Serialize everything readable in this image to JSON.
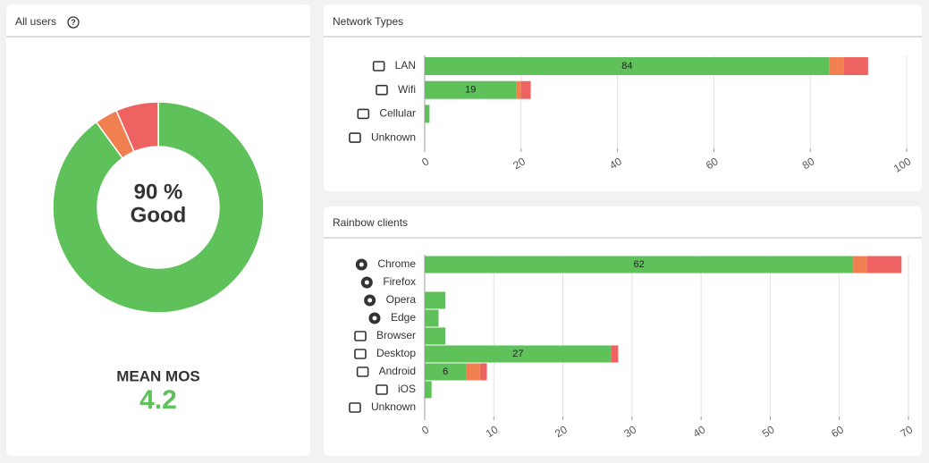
{
  "chart_data": [
    {
      "type": "pie",
      "title": "All users",
      "values": [
        90,
        3.5,
        6.5
      ],
      "colors": [
        "#5ec15a",
        "#f08050",
        "#ef6262"
      ],
      "center_label": "90 %",
      "center_sublabel": "Good",
      "mean_label": "MEAN MOS",
      "mean_value": 4.2
    },
    {
      "type": "bar",
      "title": "Network Types",
      "orientation": "horizontal",
      "stacked": true,
      "categories": [
        "LAN",
        "Wifi",
        "Cellular",
        "Unknown"
      ],
      "series": [
        {
          "color": "#5ec15a",
          "values": [
            84,
            19,
            1,
            0
          ]
        },
        {
          "color": "#f08050",
          "values": [
            3,
            1,
            0,
            0
          ]
        },
        {
          "color": "#ef6262",
          "values": [
            5,
            2,
            0,
            0
          ]
        }
      ],
      "xlim": [
        0,
        100
      ],
      "xticks": [
        0,
        20,
        40,
        60,
        80,
        100
      ],
      "grid": true
    },
    {
      "type": "bar",
      "title": "Rainbow clients",
      "orientation": "horizontal",
      "stacked": true,
      "categories": [
        "Chrome",
        "Firefox",
        "Opera",
        "Edge",
        "Browser",
        "Desktop",
        "Android",
        "iOS",
        "Unknown"
      ],
      "series": [
        {
          "color": "#5ec15a",
          "values": [
            62,
            0,
            3,
            2,
            3,
            27,
            6,
            1,
            0
          ]
        },
        {
          "color": "#f08050",
          "values": [
            2,
            0,
            0,
            0,
            0,
            0,
            2,
            0,
            0
          ]
        },
        {
          "color": "#ef6262",
          "values": [
            5,
            0,
            0,
            0,
            0,
            1,
            1,
            0,
            0
          ]
        }
      ],
      "xlim": [
        0,
        70
      ],
      "xticks": [
        0,
        10,
        20,
        30,
        40,
        50,
        60,
        70
      ],
      "grid": true
    }
  ]
}
